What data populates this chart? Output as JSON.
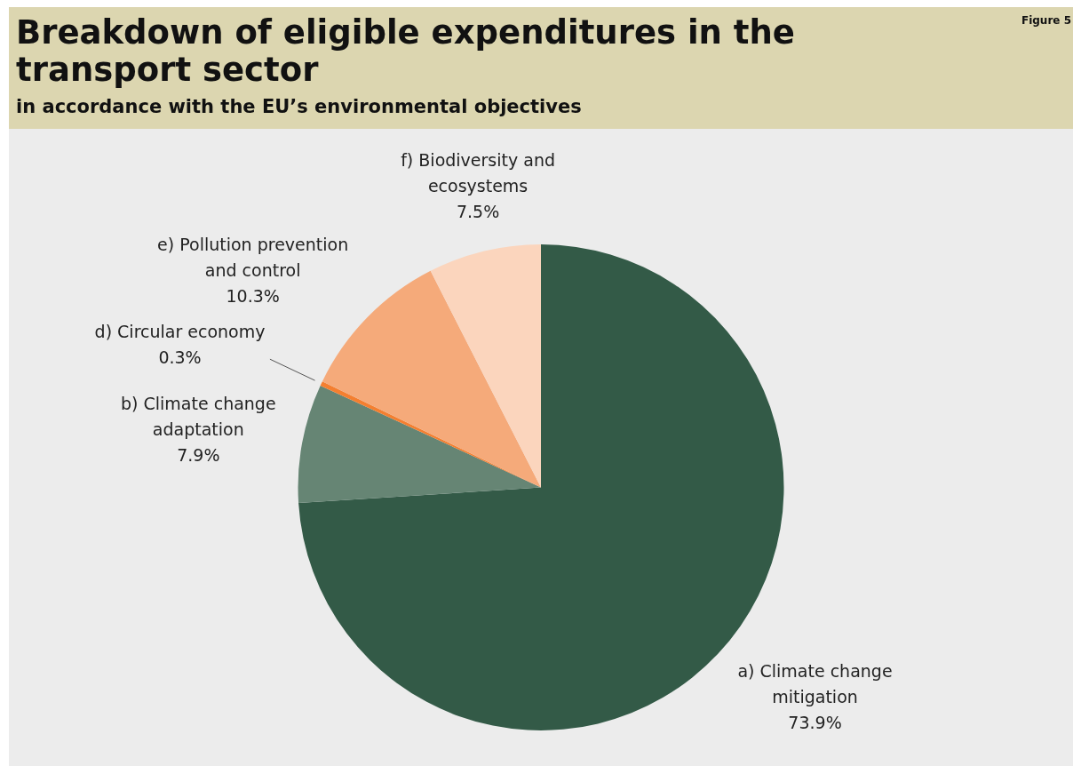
{
  "chart_data": {
    "type": "pie",
    "title": "Breakdown of eligible expenditures in the transport sector",
    "subtitle": "in accordance with the EU’s environmental objectives",
    "annotations": [
      "Figure 5"
    ],
    "categories": [
      "a) Climate change mitigation",
      "b) Climate change adaptation",
      "d) Circular economy",
      "e) Pollution prevention and control",
      "f) Biodiversity and ecosystems"
    ],
    "values": [
      73.9,
      7.9,
      0.3,
      10.3,
      7.5
    ],
    "value_labels": [
      "73.9%",
      "7.9%",
      "0.3%",
      "10.3%",
      "7.5%"
    ],
    "colors": [
      "#335a47",
      "#668574",
      "#f47f30",
      "#f5aa7a",
      "#fbd5bd"
    ],
    "legend": false
  }
}
